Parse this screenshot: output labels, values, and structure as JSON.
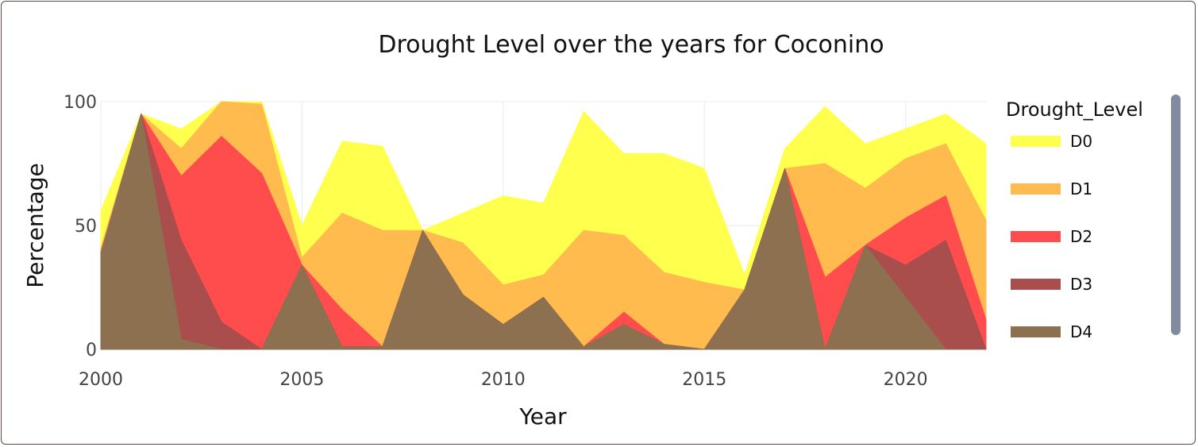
{
  "chart_data": {
    "type": "area",
    "title": "Drought Level over the years for Coconino",
    "xlabel": "Year",
    "ylabel": "Percentage",
    "xlim": [
      2000,
      2022
    ],
    "ylim": [
      0,
      100
    ],
    "x_ticks": [
      2000,
      2005,
      2010,
      2015,
      2020
    ],
    "y_ticks": [
      0,
      50,
      100
    ],
    "legend_title": "Drought_Level",
    "legend_position": "right",
    "grid": true,
    "x": [
      2000,
      2001,
      2002,
      2003,
      2004,
      2005,
      2006,
      2007,
      2008,
      2009,
      2010,
      2011,
      2012,
      2013,
      2014,
      2015,
      2016,
      2017,
      2018,
      2019,
      2020,
      2021,
      2022
    ],
    "series": [
      {
        "name": "D0",
        "color": "#ffff4d",
        "values": [
          56,
          95,
          89,
          100,
          100,
          50,
          84,
          82,
          48,
          55,
          62,
          59,
          96,
          79,
          79,
          73,
          30,
          81,
          98,
          83,
          89,
          95,
          83
        ]
      },
      {
        "name": "D1",
        "color": "#ffbb4d",
        "values": [
          41,
          95,
          81,
          100,
          99,
          37,
          55,
          48,
          48,
          43,
          26,
          30,
          48,
          46,
          31,
          27,
          24,
          73,
          75,
          65,
          77,
          83,
          52
        ]
      },
      {
        "name": "D2",
        "color": "#ff4d4d",
        "values": [
          39,
          95,
          70,
          86,
          71,
          34,
          16,
          1,
          48,
          22,
          10,
          21,
          1,
          15,
          2,
          0,
          24,
          73,
          29,
          42,
          53,
          62,
          12
        ]
      },
      {
        "name": "D3",
        "color": "#aa4d4d",
        "values": [
          39,
          95,
          44,
          11,
          0,
          34,
          1,
          1,
          48,
          22,
          10,
          21,
          1,
          10,
          2,
          0,
          24,
          73,
          0,
          42,
          34,
          44,
          0
        ]
      },
      {
        "name": "D4",
        "color": "#8c7050",
        "values": [
          39,
          95,
          4,
          0,
          0,
          34,
          1,
          1,
          48,
          22,
          10,
          21,
          1,
          10,
          2,
          0,
          24,
          73,
          0,
          42,
          21,
          0,
          0
        ]
      }
    ]
  }
}
